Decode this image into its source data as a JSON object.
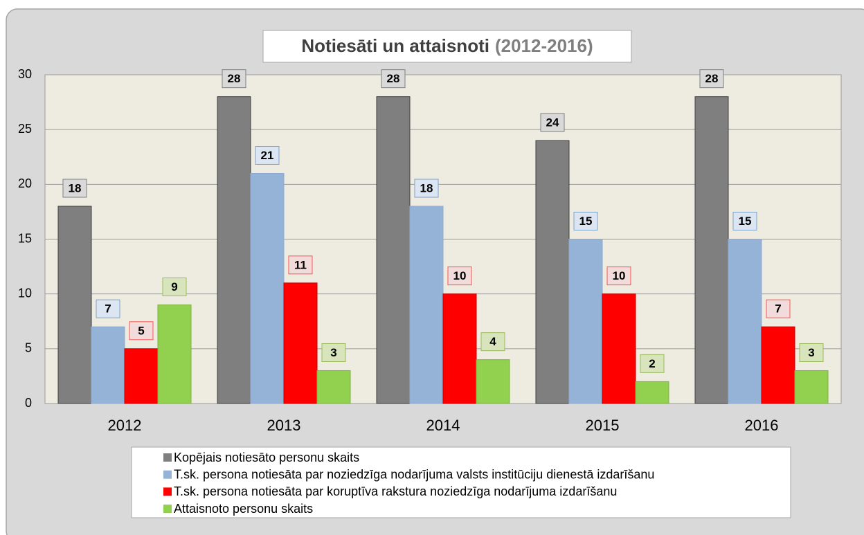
{
  "chart_data": {
    "type": "bar",
    "title": "Notiesāti un attaisnoti",
    "subtitle": "(2012-2016)",
    "categories": [
      "2012",
      "2013",
      "2014",
      "2015",
      "2016"
    ],
    "series": [
      {
        "name": "Kopējais notiesāto personu skaits",
        "color": "#7f7f7f",
        "values": [
          18,
          28,
          28,
          24,
          28
        ]
      },
      {
        "name": "T.sk. persona notiesāta par noziedzīga nodarījuma valsts institūciju dienestā izdarīšanu",
        "color": "#95b3d7",
        "values": [
          7,
          21,
          18,
          15,
          15
        ]
      },
      {
        "name": "T.sk. persona notiesāta par koruptīva rakstura noziedzīga nodarījuma izdarīšanu",
        "color": "#ff0000",
        "values": [
          5,
          11,
          10,
          10,
          7
        ]
      },
      {
        "name": "Attaisnoto personu skaits",
        "color": "#92d050",
        "values": [
          9,
          3,
          4,
          2,
          3
        ]
      }
    ],
    "ylim": [
      0,
      30
    ],
    "yticks": [
      0,
      5,
      10,
      15,
      20,
      25,
      30
    ],
    "grid": true,
    "legend": "bottom"
  }
}
